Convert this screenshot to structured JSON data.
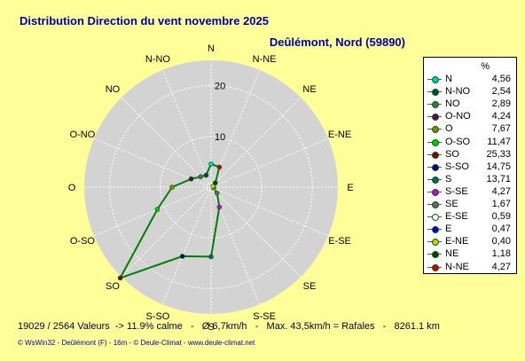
{
  "title": "Distribution Direction du vent   novembre 2025",
  "location": "Deûlémont, Nord (59890)",
  "stats_line": "19029 / 2564 Valeurs  -> 11.9% calme   -   Ø 6,7km/h   -   Max. 43,5km/h = Rafales   -   8261.1 km",
  "footer": "© WsWin32  -  Deûlémont (F) - 16m  -  © Deule-Climat - www.deule-climat.net",
  "colors": {
    "background": "#ffff99",
    "title": "#0000aa",
    "polar_disk": "#d3d3d3",
    "data_line": "#008000"
  },
  "chart_data": {
    "type": "polar-line",
    "title": "Distribution Direction du vent   novembre 2025",
    "unit": "%",
    "rmax": 25,
    "ring_labels": [
      {
        "value": 10,
        "label": "10"
      },
      {
        "value": 20,
        "label": "20"
      }
    ],
    "series": [
      {
        "name": "",
        "points": [
          {
            "dir": "N",
            "angle": 0,
            "value": 4.56,
            "color": "#00cccc"
          },
          {
            "dir": "N-NO",
            "angle": 337.5,
            "value": 2.54,
            "color": "#004444"
          },
          {
            "dir": "NO",
            "angle": 315,
            "value": 2.89,
            "color": "#556655"
          },
          {
            "dir": "O-NO",
            "angle": 292.5,
            "value": 4.24,
            "color": "#660066"
          },
          {
            "dir": "O",
            "angle": 270,
            "value": 7.67,
            "color": "#888800"
          },
          {
            "dir": "O-SO",
            "angle": 247.5,
            "value": 11.47,
            "color": "#00cc00"
          },
          {
            "dir": "SO",
            "angle": 225,
            "value": 25.33,
            "color": "#880000"
          },
          {
            "dir": "S-SO",
            "angle": 202.5,
            "value": 14.75,
            "color": "#000088"
          },
          {
            "dir": "S",
            "angle": 180,
            "value": 13.71,
            "color": "#006666"
          },
          {
            "dir": "S-SE",
            "angle": 157.5,
            "value": 4.27,
            "color": "#cc00cc"
          },
          {
            "dir": "SE",
            "angle": 135,
            "value": 1.67,
            "color": "#666666"
          },
          {
            "dir": "E-SE",
            "angle": 112.5,
            "value": 0.59,
            "color": "#ffffff"
          },
          {
            "dir": "E",
            "angle": 90,
            "value": 0.47,
            "color": "#0000cc"
          },
          {
            "dir": "E-NE",
            "angle": 67.5,
            "value": 0.4,
            "color": "#cccc00"
          },
          {
            "dir": "NE",
            "angle": 45,
            "value": 1.18,
            "color": "#004400"
          },
          {
            "dir": "N-NE",
            "angle": 22.5,
            "value": 4.27,
            "color": "#cc0000"
          }
        ]
      }
    ],
    "legend": {
      "unit_label": "%",
      "entries": [
        {
          "name": "N",
          "value": "4,56",
          "color": "#00cccc"
        },
        {
          "name": "N-NO",
          "value": "2,54",
          "color": "#004444"
        },
        {
          "name": "NO",
          "value": "2,89",
          "color": "#556655"
        },
        {
          "name": "O-NO",
          "value": "4,24",
          "color": "#660066"
        },
        {
          "name": "O",
          "value": "7,67",
          "color": "#888800"
        },
        {
          "name": "O-SO",
          "value": "11,47",
          "color": "#00cc00"
        },
        {
          "name": "SO",
          "value": "25,33",
          "color": "#880000"
        },
        {
          "name": "S-SO",
          "value": "14,75",
          "color": "#000088"
        },
        {
          "name": "S",
          "value": "13,71",
          "color": "#006666"
        },
        {
          "name": "S-SE",
          "value": "4,27",
          "color": "#cc00cc"
        },
        {
          "name": "SE",
          "value": "1,67",
          "color": "#666666"
        },
        {
          "name": "E-SE",
          "value": "0,59",
          "color": "#ffffff"
        },
        {
          "name": "E",
          "value": "0,47",
          "color": "#0000cc"
        },
        {
          "name": "E-NE",
          "value": "0,40",
          "color": "#cccc00"
        },
        {
          "name": "NE",
          "value": "1,18",
          "color": "#004400"
        },
        {
          "name": "N-NE",
          "value": "4,27",
          "color": "#cc0000"
        }
      ]
    }
  }
}
